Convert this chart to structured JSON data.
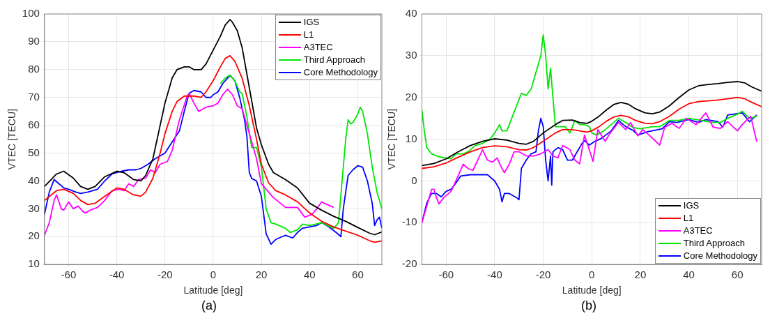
{
  "chart_data": [
    {
      "type": "line",
      "xlabel": "Latitude [deg]",
      "ylabel": "VTEC [TECU]",
      "annotations": [
        "(a)"
      ],
      "xlim": [
        -70,
        70
      ],
      "xticks": [
        -60,
        -40,
        -20,
        0,
        20,
        40,
        60
      ],
      "ylim": [
        10,
        100
      ],
      "yticks": [
        10,
        20,
        30,
        40,
        50,
        60,
        70,
        80,
        90,
        100
      ],
      "grid": true,
      "legend": "top right",
      "marker": "none",
      "line_style": "solid",
      "series": [
        {
          "name": "IGS",
          "color": "#000000",
          "x": [
            -70,
            -65,
            -62,
            -58,
            -55,
            -52,
            -49,
            -45,
            -40,
            -37,
            -33,
            -30,
            -28,
            -25,
            -22,
            -20,
            -17,
            -15,
            -12,
            -10,
            -8,
            -5,
            -3,
            0,
            3,
            5,
            7,
            8,
            10,
            12,
            15,
            18,
            20,
            23,
            25,
            30,
            35,
            40,
            45,
            50,
            55,
            60,
            65,
            67,
            70
          ],
          "values": [
            38,
            42.5,
            43.5,
            41,
            38,
            37,
            38,
            41.5,
            43.5,
            43,
            40.5,
            40,
            42,
            48,
            60,
            68,
            77,
            80,
            81,
            81,
            80,
            80,
            82,
            87,
            92,
            96,
            98,
            97,
            94,
            88,
            73.5,
            59,
            53,
            46,
            43,
            40.5,
            37.5,
            32,
            29.5,
            27.3,
            25.5,
            23.3,
            21.2,
            20.7,
            21.7
          ]
        },
        {
          "name": "L1",
          "color": "#ff0000",
          "x": [
            -70,
            -65,
            -62,
            -58,
            -55,
            -52,
            -49,
            -45,
            -40,
            -37,
            -33,
            -30,
            -28,
            -25,
            -22,
            -20,
            -17,
            -15,
            -12,
            -8,
            -5,
            -3,
            0,
            3,
            5,
            7,
            9,
            12,
            15,
            18,
            20,
            23,
            26,
            30,
            35,
            40,
            45,
            50,
            55,
            60,
            65,
            67,
            70
          ],
          "values": [
            33,
            36.5,
            37,
            35.5,
            33,
            31.5,
            32,
            34.5,
            37.5,
            37,
            35,
            34.5,
            36,
            41,
            50,
            57,
            65,
            68.5,
            70.5,
            70.5,
            70,
            72,
            76,
            81,
            84,
            85,
            83,
            77,
            67,
            55,
            46,
            39.3,
            36.5,
            35,
            32.5,
            28.5,
            25.5,
            23.5,
            22,
            20.5,
            18.5,
            18,
            18.5
          ]
        },
        {
          "name": "A3TEC",
          "color": "#ff00ff",
          "x": [
            -70,
            -68,
            -66,
            -65,
            -63,
            -62,
            -60,
            -58,
            -56,
            -54,
            -53,
            -51,
            -48,
            -45,
            -42,
            -39,
            -37,
            -35,
            -33,
            -31,
            -28,
            -26,
            -24,
            -22,
            -19,
            -17,
            -14,
            -11,
            -10,
            -8,
            -6,
            -3,
            0,
            2,
            4,
            6,
            8,
            10,
            12,
            15,
            18,
            20,
            25,
            30,
            35,
            38,
            41,
            43,
            45,
            46,
            50
          ],
          "values": [
            20.5,
            25,
            33,
            35,
            30,
            29.5,
            32.5,
            30,
            31,
            29,
            28.5,
            29.5,
            30.5,
            33,
            36.5,
            37,
            36.5,
            39,
            38,
            40.5,
            41,
            44,
            43,
            46,
            47,
            51,
            62,
            70,
            71.5,
            68,
            65,
            66.5,
            67,
            68,
            71,
            73,
            71,
            67,
            66,
            57,
            48,
            39,
            34,
            30.5,
            30.5,
            27,
            28,
            30,
            32.5,
            32,
            30.5
          ]
        },
        {
          "name": "Third Approach",
          "color": "#00e600",
          "x": [
            3,
            5,
            7,
            9,
            11,
            12,
            14,
            16,
            18,
            20,
            22,
            24,
            26,
            30,
            32,
            35,
            37,
            40,
            45,
            50,
            52,
            53,
            55,
            56,
            57,
            58,
            60,
            61,
            62,
            64,
            66,
            68,
            70
          ],
          "values": [
            75,
            77,
            78,
            76,
            72,
            71.5,
            63,
            52,
            52,
            45,
            30,
            25,
            24.5,
            23,
            21.5,
            22.5,
            24.5,
            24,
            25,
            23,
            25,
            35,
            55,
            62,
            60.5,
            61,
            64,
            66.5,
            65,
            57,
            45,
            36,
            30
          ]
        },
        {
          "name": "Core Methodology",
          "color": "#0000ff",
          "x": [
            -70,
            -68,
            -66,
            -64,
            -62,
            -60,
            -57,
            -55,
            -52,
            -48,
            -45,
            -42,
            -38,
            -35,
            -32,
            -30,
            -27,
            -24,
            -20,
            -17,
            -14,
            -12,
            -10,
            -8,
            -5,
            -3,
            -1,
            0,
            2,
            4,
            6,
            7,
            9,
            11,
            13,
            14,
            15,
            16,
            18,
            20,
            22,
            24,
            26,
            30,
            33,
            35,
            37,
            40,
            43,
            45,
            48,
            51,
            53,
            54,
            56,
            58,
            60,
            62,
            64,
            66,
            67,
            68,
            69,
            70
          ],
          "values": [
            28,
            36,
            40.5,
            39,
            37.5,
            37,
            36,
            35.5,
            36,
            37,
            40,
            42.5,
            43.5,
            44,
            44,
            44.5,
            46,
            48,
            50,
            54,
            58,
            65,
            71.5,
            72.5,
            72,
            70,
            70,
            71,
            72,
            75,
            77,
            78,
            76,
            70,
            62,
            56,
            43,
            40.9,
            40,
            34.5,
            21,
            17.3,
            19,
            20.5,
            19.5,
            21.5,
            23,
            23.5,
            24,
            25,
            23.5,
            21.5,
            20,
            30,
            42,
            44,
            45.5,
            45,
            40,
            32,
            24,
            26,
            27,
            23
          ]
        }
      ]
    },
    {
      "type": "line",
      "xlabel": "Latitude [deg]",
      "ylabel": "VTEC [TECU]",
      "annotations": [
        "(b)"
      ],
      "xlim": [
        -70,
        70
      ],
      "xticks": [
        -60,
        -40,
        -20,
        0,
        20,
        40,
        60
      ],
      "ylim": [
        -20,
        40
      ],
      "yticks": [
        -20,
        -10,
        0,
        10,
        20,
        30,
        40
      ],
      "grid": true,
      "legend": "bottom right",
      "marker": "none",
      "line_style": "solid",
      "series": [
        {
          "name": "IGS",
          "color": "#000000",
          "x": [
            -70,
            -65,
            -60,
            -55,
            -50,
            -45,
            -40,
            -35,
            -30,
            -27,
            -24,
            -20,
            -15,
            -12,
            -8,
            -5,
            -2,
            0,
            3,
            6,
            9,
            12,
            15,
            18,
            22,
            25,
            28,
            32,
            36,
            40,
            44,
            48,
            52,
            56,
            60,
            63,
            66,
            70
          ],
          "values": [
            3.7,
            4.2,
            5.3,
            7,
            8.5,
            9.5,
            10.1,
            9.8,
            9,
            8.8,
            9.5,
            11.5,
            13.5,
            14.5,
            14.6,
            14,
            13.8,
            14.3,
            15.5,
            17,
            18.3,
            18.8,
            18.4,
            17.3,
            16.3,
            16.1,
            16.5,
            18,
            20,
            21.8,
            22.8,
            23.1,
            23.3,
            23.6,
            23.8,
            23.5,
            22.5,
            21.5
          ]
        },
        {
          "name": "L1",
          "color": "#ff0000",
          "x": [
            -70,
            -65,
            -60,
            -55,
            -50,
            -45,
            -40,
            -35,
            -30,
            -27,
            -24,
            -20,
            -15,
            -12,
            -8,
            -5,
            -2,
            0,
            3,
            6,
            9,
            12,
            15,
            18,
            22,
            25,
            28,
            32,
            36,
            40,
            44,
            48,
            52,
            56,
            60,
            63,
            66,
            70
          ],
          "values": [
            3,
            3.4,
            4.3,
            5.7,
            7,
            8,
            8.4,
            8.2,
            7.5,
            7.4,
            8,
            9.5,
            11.5,
            12.3,
            12.3,
            12,
            11.7,
            12,
            13,
            14.3,
            15.3,
            15.7,
            15.4,
            14.5,
            13.8,
            13.7,
            14.2,
            15.5,
            17.2,
            18.5,
            19,
            19.2,
            19.4,
            19.7,
            20,
            19.7,
            18.8,
            17.8
          ]
        },
        {
          "name": "A3TEC",
          "color": "#ff00ff",
          "x": [
            -70,
            -68,
            -66,
            -65,
            -64,
            -63,
            -61,
            -58,
            -56,
            -53,
            -51,
            -49,
            -47,
            -45,
            -43,
            -41,
            -39,
            -37,
            -36,
            -34,
            -32,
            -30,
            -27,
            -24,
            -21,
            -18,
            -16,
            -14,
            -12,
            -9,
            -7,
            -5,
            -3,
            0.5,
            2.5,
            5.5,
            8,
            11,
            14,
            16,
            19,
            21,
            24,
            28,
            30,
            33,
            36,
            39,
            43,
            47,
            50,
            53,
            56,
            60,
            62,
            65.5,
            68
          ],
          "values": [
            -10,
            -6,
            -2,
            -2,
            -4,
            -5.5,
            -4,
            -2.5,
            0,
            4,
            3,
            2.5,
            5,
            7.5,
            5,
            4.5,
            5.5,
            3,
            2,
            4,
            7,
            7,
            6,
            6,
            6.5,
            7.5,
            6,
            5.5,
            8.5,
            7.5,
            5,
            4.1,
            11,
            4.7,
            12.3,
            9.5,
            11.8,
            14,
            12.3,
            14,
            10.8,
            12.3,
            10.8,
            8.6,
            12.8,
            13.8,
            12.6,
            15,
            13.5,
            16.3,
            12.9,
            12.6,
            14.2,
            12,
            13.5,
            15.5,
            9.4
          ]
        },
        {
          "name": "Third Approach",
          "color": "#00e600",
          "x": [
            -70,
            -69,
            -68,
            -66,
            -63,
            -60,
            -58,
            -56,
            -53,
            -51,
            -48,
            -45,
            -42,
            -40,
            -38,
            -37,
            -35,
            -33,
            -31,
            -29,
            -27,
            -25,
            -23,
            -21,
            -20,
            -19,
            -18,
            -17,
            -16,
            -15,
            -13,
            -11,
            -9,
            -7,
            -5,
            -3,
            -1,
            0,
            2,
            5,
            8,
            11,
            14,
            17,
            20,
            25,
            28,
            32,
            36,
            40,
            45,
            50,
            53,
            56,
            60,
            62,
            65,
            68
          ],
          "values": [
            17,
            12,
            8,
            6.5,
            5.8,
            5.5,
            5.3,
            6.5,
            6.5,
            7,
            8.5,
            9,
            10,
            11.5,
            13.5,
            12,
            12,
            15,
            18,
            21,
            20.5,
            22,
            26,
            30,
            35,
            30,
            22,
            27,
            20,
            13,
            13,
            13,
            11.5,
            14.5,
            13.5,
            13.5,
            13,
            11.5,
            11,
            12,
            13.5,
            15,
            14,
            12.8,
            12.5,
            13,
            13,
            14.5,
            14.5,
            15,
            14.5,
            14,
            14,
            15,
            16,
            16.7,
            15,
            15.5
          ]
        },
        {
          "name": "Core Methodology",
          "color": "#0000ff",
          "x": [
            -70,
            -68,
            -66,
            -64,
            -62,
            -60,
            -58,
            -56,
            -54,
            -50,
            -46,
            -43,
            -40,
            -38,
            -37,
            -36,
            -34,
            -31,
            -30,
            -29,
            -27,
            -25,
            -23,
            -22,
            -21,
            -20,
            -19,
            -18,
            -17,
            -16.5,
            -16,
            -14,
            -12,
            -10,
            -8,
            -6,
            -4,
            -3,
            -1,
            1,
            4,
            8,
            11,
            14,
            17,
            19,
            23,
            29,
            32,
            35,
            40,
            44,
            47,
            52,
            54,
            56,
            62,
            65,
            68
          ],
          "values": [
            -10,
            -5.3,
            -3,
            -3,
            -3.8,
            -2.5,
            -2,
            -0.5,
            1.2,
            1.5,
            1.5,
            1.5,
            0,
            -2,
            -5,
            -3,
            -3,
            -4,
            -4.5,
            3,
            5,
            6.5,
            7,
            12,
            15,
            13,
            5,
            0,
            6,
            -1,
            7,
            8,
            7.5,
            5,
            5,
            7,
            9,
            9.7,
            8.6,
            9.4,
            10.2,
            12,
            14.5,
            13,
            12.1,
            11,
            11.8,
            12.5,
            14.2,
            14,
            14.7,
            14,
            14.7,
            14.2,
            12.9,
            15.8,
            16.3,
            14.2,
            15.8
          ]
        }
      ]
    }
  ]
}
